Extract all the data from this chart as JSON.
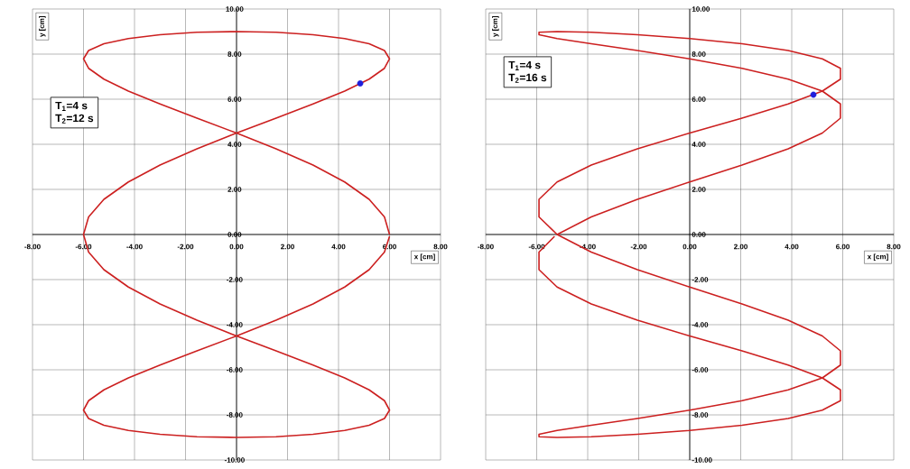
{
  "chart_data": [
    {
      "type": "line",
      "xlabel": "x [cm]",
      "ylabel": "y [cm]",
      "xlim": [
        -8,
        8
      ],
      "ylim": [
        -10,
        10
      ],
      "grid": true,
      "xticks": [
        {
          "value": -8,
          "label": "-8.00"
        },
        {
          "value": -6,
          "label": "-6.00"
        },
        {
          "value": -4,
          "label": "-4.00"
        },
        {
          "value": -2,
          "label": "-2.00"
        },
        {
          "value": 0,
          "label": "0.00"
        },
        {
          "value": 2,
          "label": "2.00"
        },
        {
          "value": 4,
          "label": "4.00"
        },
        {
          "value": 6,
          "label": "6.00"
        },
        {
          "value": 8,
          "label": "8.00"
        }
      ],
      "yticks": [
        {
          "value": -10,
          "label": "-10.00"
        },
        {
          "value": -8,
          "label": "-8.00"
        },
        {
          "value": -6,
          "label": "-6.00"
        },
        {
          "value": -4,
          "label": "-4.00"
        },
        {
          "value": -2,
          "label": "-2.00"
        },
        {
          "value": 0,
          "label": "0.00"
        },
        {
          "value": 2,
          "label": "2.00"
        },
        {
          "value": 4,
          "label": "4.00"
        },
        {
          "value": 6,
          "label": "6.00"
        },
        {
          "value": 8,
          "label": "8.00"
        },
        {
          "value": 10,
          "label": "10.00"
        }
      ],
      "annotations": [
        "T$_{1}$=4 s",
        "T$_{2}$=12 s"
      ],
      "series": [
        {
          "type": "line",
          "color": "#cc2020",
          "x": [
            6,
            5.8,
            5.2,
            4.24,
            3,
            1.55,
            0,
            -1.55,
            -3,
            -4.24,
            -5.2,
            -5.8,
            -6,
            -5.8,
            -5.2,
            -4.24,
            -3,
            -1.55,
            0,
            1.55,
            3,
            4.24,
            5.2,
            5.8,
            6,
            5.8,
            5.2,
            4.24,
            3,
            1.55,
            0,
            -1.55,
            -3,
            -4.24,
            -5.2,
            -5.8,
            -6,
            -5.8,
            -5.2,
            -4.24,
            -3,
            -1.55,
            0,
            1.55,
            3,
            4.24,
            5.2,
            5.8,
            6,
            5.8,
            5.2,
            4.24,
            3,
            1.55,
            0,
            -1.55,
            -3,
            -4.24,
            -5.2,
            -5.8,
            -6,
            -5.8,
            -5.2,
            -4.24,
            -3,
            -1.55,
            0,
            1.55,
            3,
            4.24,
            5.2,
            5.8,
            6
          ],
          "values": [
            0,
            0.78,
            1.56,
            2.33,
            3.08,
            3.8,
            4.5,
            5.16,
            5.79,
            6.36,
            6.89,
            7.37,
            7.79,
            8.16,
            8.46,
            8.69,
            8.86,
            8.97,
            9,
            8.97,
            8.86,
            8.69,
            8.46,
            8.16,
            7.79,
            7.37,
            6.89,
            6.36,
            5.79,
            5.16,
            4.5,
            3.8,
            3.08,
            2.33,
            1.56,
            0.78,
            0,
            -0.78,
            -1.56,
            -2.33,
            -3.08,
            -3.8,
            -4.5,
            -5.16,
            -5.79,
            -6.36,
            -6.89,
            -7.37,
            -7.79,
            -8.16,
            -8.46,
            -8.69,
            -8.86,
            -8.97,
            -9,
            -8.97,
            -8.86,
            -8.69,
            -8.46,
            -8.16,
            -7.79,
            -7.37,
            -6.89,
            -6.36,
            -5.79,
            -5.16,
            -4.5,
            -3.8,
            -3.08,
            -2.33,
            -1.56,
            -0.78,
            -0.08
          ]
        },
        {
          "type": "scatter",
          "color": "#1f1fdd",
          "marker": "circle",
          "x": [
            4.85
          ],
          "values": [
            6.7
          ]
        }
      ]
    },
    {
      "type": "line",
      "xlabel": "x [cm]",
      "ylabel": "y [cm]",
      "xlim": [
        -8,
        8
      ],
      "ylim": [
        -10,
        10
      ],
      "grid": true,
      "xticks": [
        {
          "value": -8,
          "label": "-8.00"
        },
        {
          "value": -6,
          "label": "-6.00"
        },
        {
          "value": -4,
          "label": "-4.00"
        },
        {
          "value": -2,
          "label": "-2.00"
        },
        {
          "value": 0,
          "label": "0.00"
        },
        {
          "value": 2,
          "label": "2.00"
        },
        {
          "value": 4,
          "label": "4.00"
        },
        {
          "value": 6,
          "label": "6.00"
        },
        {
          "value": 8,
          "label": "8.00"
        }
      ],
      "yticks": [
        {
          "value": -10,
          "label": "-10.00"
        },
        {
          "value": -8,
          "label": "-8.00"
        },
        {
          "value": -6,
          "label": "-6.00"
        },
        {
          "value": -4,
          "label": "-4.00"
        },
        {
          "value": -2,
          "label": "-2.00"
        },
        {
          "value": 0,
          "label": "0.00"
        },
        {
          "value": 2,
          "label": "2.00"
        },
        {
          "value": 4,
          "label": "4.00"
        },
        {
          "value": 6,
          "label": "6.00"
        },
        {
          "value": 8,
          "label": "8.00"
        },
        {
          "value": 10,
          "label": "10.00"
        }
      ],
      "annotations": [
        "T$_{1}$=4 s",
        "T$_{2}$=16 s"
      ],
      "series": [
        {
          "type": "line",
          "color": "#cc2020",
          "x": [
            -5.2,
            -3.86,
            -2.05,
            0,
            2.05,
            3.86,
            5.2,
            5.91,
            5.91,
            5.2,
            3.86,
            2.05,
            0,
            -2.05,
            -3.86,
            -5.2,
            -5.91,
            -5.91,
            -5.2,
            -3.86,
            -2.05,
            0,
            2.05,
            3.86,
            5.2,
            5.91,
            5.91,
            5.2,
            3.86,
            2.05,
            0,
            -2.05,
            -3.86,
            -5.2,
            -5.91,
            -5.91,
            -5.2,
            -3.86,
            -2.05,
            0,
            2.05,
            3.86,
            5.2,
            5.91,
            5.91,
            5.2,
            3.86,
            2.05,
            0,
            -2.05,
            -3.86,
            -5.2,
            -5.91,
            -5.91,
            -5.2,
            -3.86,
            -2.05,
            0,
            2.05,
            3.86,
            5.2,
            5.91,
            5.91,
            5.2,
            3.86,
            2.05,
            0,
            -2.05,
            -3.86,
            -5.2,
            -5.91,
            -5.91,
            -5.3
          ],
          "values": [
            0,
            0.78,
            1.56,
            2.33,
            3.08,
            3.8,
            4.5,
            5.16,
            5.79,
            6.36,
            6.89,
            7.37,
            7.79,
            8.16,
            8.46,
            8.69,
            8.86,
            8.97,
            9,
            8.97,
            8.86,
            8.69,
            8.46,
            8.16,
            7.79,
            7.37,
            6.89,
            6.36,
            5.79,
            5.16,
            4.5,
            3.8,
            3.08,
            2.33,
            1.56,
            0.78,
            0,
            -0.78,
            -1.56,
            -2.33,
            -3.08,
            -3.8,
            -4.5,
            -5.16,
            -5.79,
            -6.36,
            -6.89,
            -7.37,
            -7.79,
            -8.16,
            -8.46,
            -8.69,
            -8.86,
            -8.97,
            -9,
            -8.97,
            -8.86,
            -8.69,
            -8.46,
            -8.16,
            -7.79,
            -7.37,
            -6.89,
            -6.36,
            -5.79,
            -5.16,
            -4.5,
            -3.8,
            -3.08,
            -2.33,
            -1.56,
            -0.78,
            -0.08
          ]
        },
        {
          "type": "scatter",
          "color": "#1f1fdd",
          "marker": "circle",
          "x": [
            4.85
          ],
          "values": [
            6.2
          ]
        }
      ]
    }
  ]
}
